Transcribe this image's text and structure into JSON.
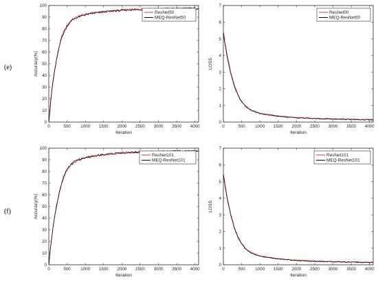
{
  "panel_labels": [
    "(e)",
    "(f)"
  ],
  "chart_data": [
    {
      "type": "line",
      "xlabel": "Iteration",
      "ylabel": "Accuracy(%)",
      "xlim": [
        0,
        4100
      ],
      "ylim": [
        0,
        100
      ],
      "xticks": [
        0,
        500,
        1000,
        1500,
        2000,
        2500,
        3000,
        3500,
        4000
      ],
      "yticks": [
        0,
        10,
        20,
        30,
        40,
        50,
        60,
        70,
        80,
        90,
        100
      ],
      "grid": false,
      "legend_position": "top-right",
      "series": [
        {
          "name": "ResNet50",
          "color": "#e03030",
          "x": [
            0,
            50,
            100,
            150,
            200,
            250,
            300,
            350,
            400,
            450,
            500,
            600,
            700,
            800,
            900,
            1000,
            1200,
            1400,
            1600,
            1800,
            2000,
            2250,
            2500,
            2750,
            3000,
            3250,
            3500,
            3750,
            4000,
            4100
          ],
          "y": [
            0,
            18,
            32,
            43,
            52,
            60,
            67,
            73,
            77,
            80,
            83,
            87,
            89,
            90.5,
            91.5,
            92.5,
            93.5,
            94.3,
            95,
            95.5,
            96,
            96.4,
            96.7,
            97,
            97.2,
            97.3,
            97.4,
            97.5,
            97.6,
            97.6
          ]
        },
        {
          "name": "MEQ-ResNet50",
          "color": "#000000",
          "x": [
            0,
            50,
            100,
            150,
            200,
            250,
            300,
            350,
            400,
            450,
            500,
            600,
            700,
            800,
            900,
            1000,
            1200,
            1400,
            1600,
            1800,
            2000,
            2250,
            2500,
            2750,
            3000,
            3250,
            3500,
            3750,
            4000,
            4100
          ],
          "y": [
            0,
            17,
            31,
            42,
            51,
            59,
            66,
            72,
            76,
            79,
            82,
            86.5,
            88.5,
            90,
            91,
            92,
            93.3,
            94.1,
            94.8,
            95.3,
            95.8,
            96.2,
            96.5,
            96.8,
            97,
            97.1,
            97.2,
            97.3,
            97.4,
            97.4
          ]
        }
      ]
    },
    {
      "type": "line",
      "xlabel": "Iteration",
      "ylabel": "LOSS",
      "xlim": [
        0,
        4100
      ],
      "ylim": [
        0,
        7
      ],
      "xticks": [
        0,
        500,
        1000,
        1500,
        2000,
        2500,
        3000,
        3500,
        4000
      ],
      "yticks": [
        0,
        1,
        2,
        3,
        4,
        5,
        6,
        7
      ],
      "grid": false,
      "legend_position": "top-right",
      "series": [
        {
          "name": "ResNet50",
          "color": "#e03030",
          "x": [
            0,
            50,
            100,
            200,
            300,
            400,
            500,
            600,
            700,
            800,
            900,
            1000,
            1200,
            1400,
            1600,
            1800,
            2000,
            2500,
            3000,
            3500,
            4000,
            4100
          ],
          "y": [
            5.45,
            4.7,
            4.05,
            3.0,
            2.2,
            1.65,
            1.25,
            0.98,
            0.8,
            0.68,
            0.6,
            0.53,
            0.45,
            0.39,
            0.34,
            0.3,
            0.27,
            0.22,
            0.19,
            0.17,
            0.15,
            0.15
          ]
        },
        {
          "name": "MEQ-ResNet50",
          "color": "#000000",
          "x": [
            0,
            50,
            100,
            200,
            300,
            400,
            500,
            600,
            700,
            800,
            900,
            1000,
            1200,
            1400,
            1600,
            1800,
            2000,
            2500,
            3000,
            3500,
            4000,
            4100
          ],
          "y": [
            5.35,
            4.6,
            3.95,
            2.95,
            2.15,
            1.6,
            1.22,
            0.96,
            0.78,
            0.66,
            0.58,
            0.52,
            0.44,
            0.38,
            0.33,
            0.29,
            0.26,
            0.21,
            0.18,
            0.16,
            0.14,
            0.14
          ]
        }
      ]
    },
    {
      "type": "line",
      "xlabel": "Iteration",
      "ylabel": "Accuracy(%)",
      "xlim": [
        0,
        4100
      ],
      "ylim": [
        0,
        100
      ],
      "xticks": [
        0,
        500,
        1000,
        1500,
        2000,
        2500,
        3000,
        3500,
        4000
      ],
      "yticks": [
        0,
        10,
        20,
        30,
        40,
        50,
        60,
        70,
        80,
        90,
        100
      ],
      "grid": false,
      "legend_position": "top-right",
      "series": [
        {
          "name": "ResNet101",
          "color": "#e03030",
          "x": [
            0,
            50,
            100,
            150,
            200,
            250,
            300,
            350,
            400,
            450,
            500,
            600,
            700,
            800,
            900,
            1000,
            1200,
            1400,
            1600,
            1800,
            2000,
            2250,
            2500,
            2750,
            3000,
            3250,
            3500,
            3750,
            4000,
            4100
          ],
          "y": [
            0,
            15,
            28,
            39,
            48,
            56,
            63,
            69,
            74,
            78,
            81,
            85.5,
            88,
            89.5,
            90.7,
            91.7,
            93,
            94,
            94.8,
            95.3,
            95.8,
            96.2,
            96.5,
            96.8,
            97,
            97.1,
            97.2,
            97.3,
            97.4,
            97.4
          ]
        },
        {
          "name": "MEQ-ResNet101",
          "color": "#000000",
          "x": [
            0,
            50,
            100,
            150,
            200,
            250,
            300,
            350,
            400,
            450,
            500,
            600,
            700,
            800,
            900,
            1000,
            1200,
            1400,
            1600,
            1800,
            2000,
            2250,
            2500,
            2750,
            3000,
            3250,
            3500,
            3750,
            4000,
            4100
          ],
          "y": [
            0,
            16,
            29,
            40,
            49,
            57,
            64,
            70,
            75,
            79,
            82,
            86,
            88.5,
            90,
            91,
            92,
            93.2,
            94.2,
            95,
            95.5,
            96,
            96.4,
            96.7,
            97,
            97.2,
            97.3,
            97.4,
            97.5,
            97.6,
            97.6
          ]
        }
      ]
    },
    {
      "type": "line",
      "xlabel": "Iteration",
      "ylabel": "LOSS",
      "xlim": [
        0,
        4100
      ],
      "ylim": [
        0,
        7
      ],
      "xticks": [
        0,
        500,
        1000,
        1500,
        2000,
        2500,
        3000,
        3500,
        4000
      ],
      "yticks": [
        0,
        1,
        2,
        3,
        4,
        5,
        6,
        7
      ],
      "grid": false,
      "legend_position": "top-right",
      "series": [
        {
          "name": "ResNet101",
          "color": "#e03030",
          "x": [
            0,
            50,
            100,
            200,
            300,
            400,
            500,
            600,
            700,
            800,
            900,
            1000,
            1200,
            1400,
            1600,
            1800,
            2000,
            2500,
            3000,
            3500,
            4000,
            4100
          ],
          "y": [
            5.5,
            4.75,
            4.1,
            3.05,
            2.25,
            1.68,
            1.28,
            1.0,
            0.82,
            0.7,
            0.61,
            0.54,
            0.46,
            0.4,
            0.35,
            0.31,
            0.28,
            0.22,
            0.19,
            0.17,
            0.15,
            0.15
          ]
        },
        {
          "name": "MEQ-ResNet101",
          "color": "#000000",
          "x": [
            0,
            50,
            100,
            200,
            300,
            400,
            500,
            600,
            700,
            800,
            900,
            1000,
            1200,
            1400,
            1600,
            1800,
            2000,
            2500,
            3000,
            3500,
            4000,
            4100
          ],
          "y": [
            5.4,
            4.65,
            4.0,
            3.0,
            2.2,
            1.63,
            1.24,
            0.97,
            0.79,
            0.67,
            0.59,
            0.52,
            0.44,
            0.38,
            0.33,
            0.29,
            0.26,
            0.21,
            0.18,
            0.16,
            0.14,
            0.14
          ]
        }
      ]
    }
  ]
}
